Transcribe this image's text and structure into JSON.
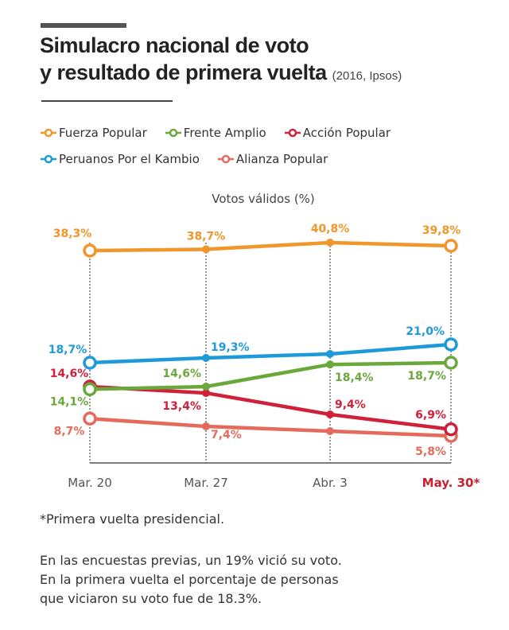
{
  "title": {
    "line1": "Simulacro nacional de voto",
    "line2": "y resultado de primera vuelta",
    "source": "(2016, Ipsos)"
  },
  "footnotes": {
    "asterisk": "*Primera vuelta presidencial.",
    "line1": "En las encuestas previas, un 19% vició su voto.",
    "line2": "En la primera vuelta el porcentaje de personas",
    "line3": "que viciaron su voto fue de 18.3%."
  },
  "chart_data": {
    "type": "line",
    "title": "Simulacro nacional de voto y resultado de primera vuelta (2016, Ipsos)",
    "ylabel": "Votos válidos (%)",
    "xlabel": "",
    "categories": [
      "Mar. 20",
      "Mar. 27",
      "Abr. 3",
      "May. 30*"
    ],
    "highlight_category_color": "#c8202f",
    "grid": "vertical dotted lines at each category",
    "legend_position": "top-left",
    "series": [
      {
        "name": "Fuerza Popular",
        "color": "#f0962a",
        "values": [
          38.3,
          38.7,
          40.8,
          39.8
        ],
        "labels": [
          "38,3%",
          "38,7%",
          "40,8%",
          "39,8%"
        ]
      },
      {
        "name": "Frente Amplio",
        "color": "#6aa83c",
        "values": [
          14.1,
          14.6,
          18.4,
          18.7
        ],
        "labels": [
          "14,1%",
          "14,6%",
          "18,4%",
          "18,7%"
        ]
      },
      {
        "name": "Acción Popular",
        "color": "#d0213a",
        "values": [
          14.6,
          13.4,
          9.4,
          6.9
        ],
        "labels": [
          "14,6%",
          "13,4%",
          "9,4%",
          "6,9%"
        ]
      },
      {
        "name": "Peruanos Por el Kambio",
        "color": "#1e9ad8",
        "values": [
          18.7,
          19.3,
          19.8,
          21.0
        ],
        "labels": [
          "18,7%",
          "19,3%",
          "",
          "21,0%"
        ]
      },
      {
        "name": "Alianza Popular",
        "color": "#e46a5c",
        "values": [
          8.7,
          7.4,
          6.6,
          5.8
        ],
        "labels": [
          "8,7%",
          "7,4%",
          "",
          "5,8%"
        ]
      }
    ]
  }
}
